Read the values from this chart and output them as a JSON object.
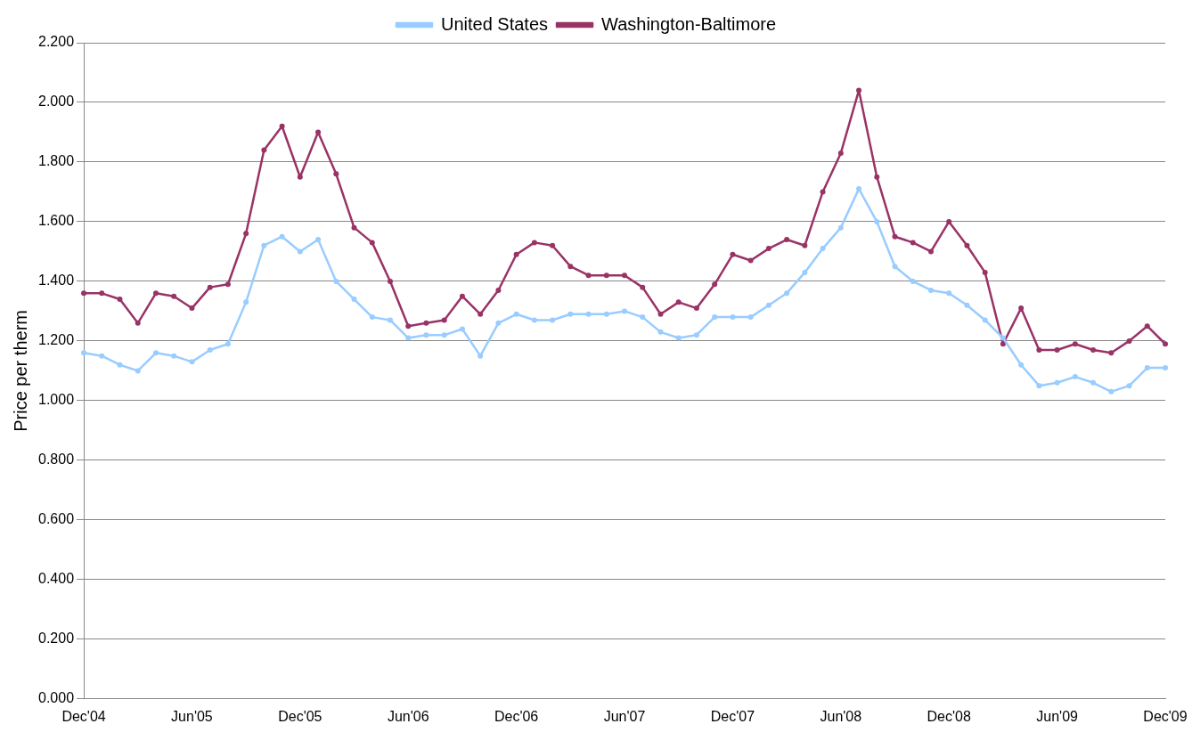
{
  "chart_data": {
    "type": "line",
    "ylabel": "Price per therm",
    "categories": [
      "Dec'04",
      null,
      null,
      null,
      null,
      null,
      "Jun'05",
      null,
      null,
      null,
      null,
      null,
      "Dec'05",
      null,
      null,
      null,
      null,
      null,
      "Jun'06",
      null,
      null,
      null,
      null,
      null,
      "Dec'06",
      null,
      null,
      null,
      null,
      null,
      "Jun'07",
      null,
      null,
      null,
      null,
      null,
      "Dec'07",
      null,
      null,
      null,
      null,
      null,
      "Jun'08",
      null,
      null,
      null,
      null,
      null,
      "Dec'08",
      null,
      null,
      null,
      null,
      null,
      "Jun'09",
      null,
      null,
      null,
      null,
      null,
      "Dec'09"
    ],
    "series": [
      {
        "name": "United States",
        "color": "#99ccff",
        "values": [
          1.16,
          1.15,
          1.12,
          1.1,
          1.16,
          1.15,
          1.13,
          1.17,
          1.19,
          1.33,
          1.52,
          1.55,
          1.5,
          1.54,
          1.4,
          1.34,
          1.28,
          1.27,
          1.21,
          1.22,
          1.22,
          1.24,
          1.15,
          1.26,
          1.29,
          1.27,
          1.27,
          1.29,
          1.29,
          1.29,
          1.3,
          1.28,
          1.23,
          1.21,
          1.22,
          1.28,
          1.28,
          1.28,
          1.32,
          1.36,
          1.43,
          1.51,
          1.58,
          1.71,
          1.6,
          1.45,
          1.4,
          1.37,
          1.36,
          1.32,
          1.27,
          1.21,
          1.12,
          1.05,
          1.06,
          1.08,
          1.06,
          1.03,
          1.05,
          1.11,
          1.11
        ]
      },
      {
        "name": "Washington-Baltimore",
        "color": "#993366",
        "values": [
          1.36,
          1.36,
          1.34,
          1.26,
          1.36,
          1.35,
          1.31,
          1.38,
          1.39,
          1.56,
          1.84,
          1.92,
          1.75,
          1.9,
          1.76,
          1.58,
          1.53,
          1.4,
          1.25,
          1.26,
          1.27,
          1.35,
          1.29,
          1.37,
          1.49,
          1.53,
          1.52,
          1.45,
          1.42,
          1.42,
          1.42,
          1.38,
          1.29,
          1.33,
          1.31,
          1.39,
          1.49,
          1.47,
          1.51,
          1.54,
          1.52,
          1.7,
          1.83,
          2.04,
          1.75,
          1.55,
          1.53,
          1.5,
          1.6,
          1.52,
          1.43,
          1.19,
          1.31,
          1.17,
          1.17,
          1.19,
          1.17,
          1.16,
          1.2,
          1.25,
          1.19
        ]
      }
    ],
    "ylim": [
      0,
      2.2
    ],
    "yticks": [
      {
        "value": 0,
        "label": "0.000"
      },
      {
        "value": 0.2,
        "label": "0.200"
      },
      {
        "value": 0.4,
        "label": "0.400"
      },
      {
        "value": 0.6,
        "label": "0.600"
      },
      {
        "value": 0.8,
        "label": "0.800"
      },
      {
        "value": 1,
        "label": "1.000"
      },
      {
        "value": 1.2,
        "label": "1.200"
      },
      {
        "value": 1.4,
        "label": "1.400"
      },
      {
        "value": 1.6,
        "label": "1.600"
      },
      {
        "value": 1.8,
        "label": "1.800"
      },
      {
        "value": 2,
        "label": "2.000"
      },
      {
        "value": 2.2,
        "label": "2.200"
      }
    ],
    "grid": "y",
    "legend": "top",
    "marker": "circle",
    "line_style": "solid"
  }
}
